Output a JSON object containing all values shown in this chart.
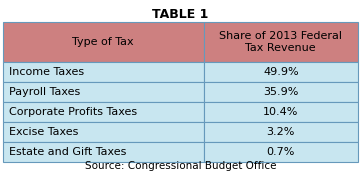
{
  "title": "TABLE 1",
  "col_headers": [
    "Type of Tax",
    "Share of 2013 Federal\nTax Revenue"
  ],
  "rows": [
    [
      "Income Taxes",
      "49.9%"
    ],
    [
      "Payroll Taxes",
      "35.9%"
    ],
    [
      "Corporate Profits Taxes",
      "10.4%"
    ],
    [
      "Excise Taxes",
      "3.2%"
    ],
    [
      "Estate and Gift Taxes",
      "0.7%"
    ]
  ],
  "source": "Source: Congressional Budget Office",
  "header_bg": "#cd8080",
  "row_bg": "#c8e6f0",
  "border_color": "#6699bb",
  "title_fontsize": 9,
  "header_fontsize": 8,
  "cell_fontsize": 8,
  "source_fontsize": 7.5,
  "col_split": 0.565,
  "fig_bg": "#ffffff"
}
